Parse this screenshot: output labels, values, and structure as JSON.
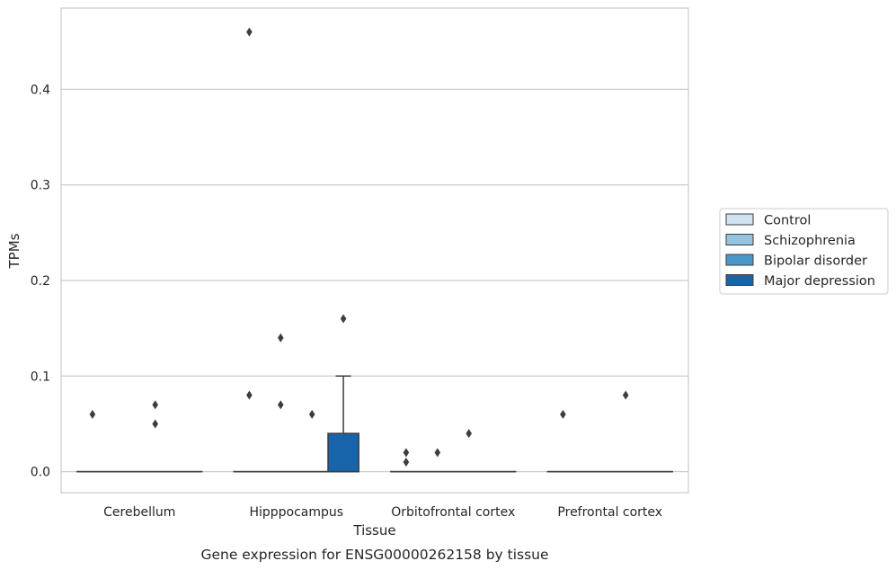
{
  "chart_data": {
    "type": "box",
    "xlabel": "Tissue",
    "ylabel": "TPMs",
    "caption": "Gene expression for ENSG00000262158 by tissue",
    "ylim": [
      -0.022,
      0.485
    ],
    "yticks": [
      0.0,
      0.1,
      0.2,
      0.3,
      0.4
    ],
    "ytick_labels": [
      "0.0",
      "0.1",
      "0.2",
      "0.3",
      "0.4"
    ],
    "grid": "horizontal",
    "legend_position": "right",
    "categories": [
      "Cerebellum",
      "Hipppocampus",
      "Orbitofrontal cortex",
      "Prefrontal cortex"
    ],
    "series": [
      {
        "name": "Control",
        "color": "#d0e1f2",
        "boxes": [
          {
            "q1": 0,
            "median": 0,
            "q3": 0,
            "whisker_low": 0,
            "whisker_high": 0,
            "outliers": [
              0.06
            ]
          },
          {
            "q1": 0,
            "median": 0,
            "q3": 0,
            "whisker_low": 0,
            "whisker_high": 0,
            "outliers": [
              0.46,
              0.08
            ]
          },
          {
            "q1": 0,
            "median": 0,
            "q3": 0,
            "whisker_low": 0,
            "whisker_high": 0,
            "outliers": [
              0.02,
              0.01
            ]
          },
          {
            "q1": 0,
            "median": 0,
            "q3": 0,
            "whisker_low": 0,
            "whisker_high": 0,
            "outliers": [
              0.06
            ]
          }
        ]
      },
      {
        "name": "Schizophrenia",
        "color": "#94c4df",
        "boxes": [
          {
            "q1": 0,
            "median": 0,
            "q3": 0,
            "whisker_low": 0,
            "whisker_high": 0,
            "outliers": []
          },
          {
            "q1": 0,
            "median": 0,
            "q3": 0,
            "whisker_low": 0,
            "whisker_high": 0,
            "outliers": [
              0.14,
              0.07
            ]
          },
          {
            "q1": 0,
            "median": 0,
            "q3": 0,
            "whisker_low": 0,
            "whisker_high": 0,
            "outliers": [
              0.02
            ]
          },
          {
            "q1": 0,
            "median": 0,
            "q3": 0,
            "whisker_low": 0,
            "whisker_high": 0,
            "outliers": []
          }
        ]
      },
      {
        "name": "Bipolar disorder",
        "color": "#4a98c9",
        "boxes": [
          {
            "q1": 0,
            "median": 0,
            "q3": 0,
            "whisker_low": 0,
            "whisker_high": 0,
            "outliers": [
              0.07,
              0.05
            ]
          },
          {
            "q1": 0,
            "median": 0,
            "q3": 0,
            "whisker_low": 0,
            "whisker_high": 0,
            "outliers": [
              0.06
            ]
          },
          {
            "q1": 0,
            "median": 0,
            "q3": 0,
            "whisker_low": 0,
            "whisker_high": 0,
            "outliers": [
              0.04
            ]
          },
          {
            "q1": 0,
            "median": 0,
            "q3": 0,
            "whisker_low": 0,
            "whisker_high": 0,
            "outliers": [
              0.08
            ]
          }
        ]
      },
      {
        "name": "Major depression",
        "color": "#1764ab",
        "boxes": [
          {
            "q1": 0,
            "median": 0,
            "q3": 0,
            "whisker_low": 0,
            "whisker_high": 0,
            "outliers": []
          },
          {
            "q1": 0,
            "median": 0,
            "q3": 0.04,
            "whisker_low": 0,
            "whisker_high": 0.1,
            "outliers": [
              0.16
            ]
          },
          {
            "q1": 0,
            "median": 0,
            "q3": 0,
            "whisker_low": 0,
            "whisker_high": 0,
            "outliers": []
          },
          {
            "q1": 0,
            "median": 0,
            "q3": 0,
            "whisker_low": 0,
            "whisker_high": 0,
            "outliers": []
          }
        ]
      }
    ]
  }
}
